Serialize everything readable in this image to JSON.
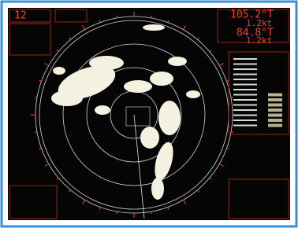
{
  "range": "12",
  "readouts": [
    "105.2°T",
    "1.2kt",
    "84.8°T",
    "1.2kt"
  ]
}
